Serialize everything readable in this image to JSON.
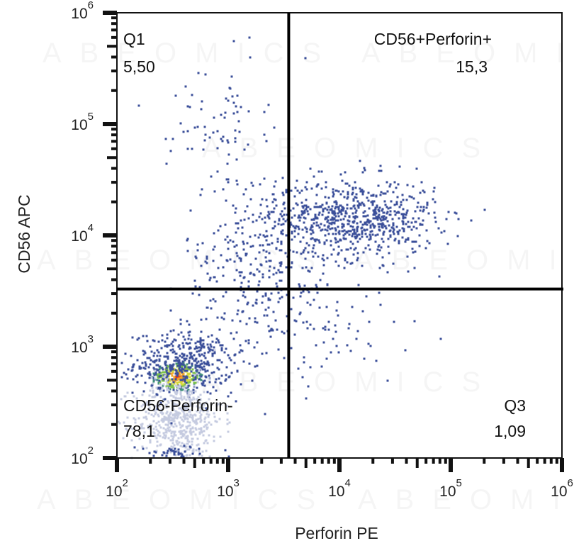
{
  "chart_data": {
    "type": "scatter",
    "subtype": "flow-cytometry-pseudocolor-dot-plot",
    "title": "",
    "xlabel": "Perforin PE",
    "ylabel": "CD56 APC",
    "xscale": "log",
    "yscale": "log",
    "xlim": [
      100,
      1000000
    ],
    "ylim": [
      100,
      1000000
    ],
    "x_ticks": [
      {
        "base": "10",
        "exp": "2",
        "value": 100
      },
      {
        "base": "10",
        "exp": "3",
        "value": 1000
      },
      {
        "base": "10",
        "exp": "4",
        "value": 10000
      },
      {
        "base": "10",
        "exp": "5",
        "value": 100000
      },
      {
        "base": "10",
        "exp": "6",
        "value": 1000000
      }
    ],
    "y_ticks": [
      {
        "base": "10",
        "exp": "2",
        "value": 100
      },
      {
        "base": "10",
        "exp": "3",
        "value": 1000
      },
      {
        "base": "10",
        "exp": "4",
        "value": 10000
      },
      {
        "base": "10",
        "exp": "5",
        "value": 100000
      },
      {
        "base": "10",
        "exp": "6",
        "value": 1000000
      }
    ],
    "grid": false,
    "legend": "none",
    "gates": {
      "x_threshold": 3500,
      "y_threshold": 3300
    },
    "quadrants": [
      {
        "id": "q1",
        "name": "Q1",
        "value": "5,50",
        "position": "top-left"
      },
      {
        "id": "q2",
        "name": "CD56+Perforin+",
        "value": "15,3",
        "position": "top-right"
      },
      {
        "id": "q3",
        "name": "Q3",
        "value": "1,09",
        "position": "bottom-right"
      },
      {
        "id": "q4",
        "name": "CD56-Perforin-",
        "value": "78,1",
        "position": "bottom-left"
      }
    ],
    "populations": [
      {
        "name": "CD56-Perforin- dense core",
        "center_log": [
          2.55,
          2.73
        ],
        "spread_log": [
          0.12,
          0.07
        ],
        "count": 260,
        "color_scale": "density"
      },
      {
        "name": "CD56-Perforin- halo",
        "center_log": [
          2.6,
          2.85
        ],
        "spread_log": [
          0.22,
          0.14
        ],
        "count": 420,
        "color": "#3b4f9a"
      },
      {
        "name": "CD56-Perforin- low (pale)",
        "center_log": [
          2.55,
          2.35
        ],
        "spread_log": [
          0.2,
          0.18
        ],
        "count": 520,
        "color": "#c5cbe0"
      },
      {
        "name": "CD56+Perforin+ cluster",
        "center_log": [
          4.15,
          4.15
        ],
        "spread_log": [
          0.36,
          0.18
        ],
        "count": 700,
        "color": "#3b4f9a"
      },
      {
        "name": "transitional scatter",
        "center_log": [
          3.3,
          3.7
        ],
        "spread_log": [
          0.35,
          0.45
        ],
        "count": 380,
        "color": "#3b4f9a"
      },
      {
        "name": "Q1 high tail",
        "center_log": [
          2.9,
          5.05
        ],
        "spread_log": [
          0.22,
          0.25
        ],
        "count": 70,
        "color": "#3b4f9a"
      },
      {
        "name": "Q3 sparse",
        "center_log": [
          4.0,
          3.1
        ],
        "spread_log": [
          0.4,
          0.25
        ],
        "count": 40,
        "color": "#3b4f9a"
      },
      {
        "name": "bottom edge",
        "center_log": [
          2.55,
          2.05
        ],
        "spread_log": [
          0.18,
          0.03
        ],
        "count": 40,
        "color": "#3b4f9a"
      }
    ],
    "density_colors": [
      "#3b4f9a",
      "#3f8f7a",
      "#7fc24a",
      "#d6d83a",
      "#f2a52a",
      "#e5391f"
    ]
  },
  "watermark": {
    "text": "ABEOMICS"
  }
}
